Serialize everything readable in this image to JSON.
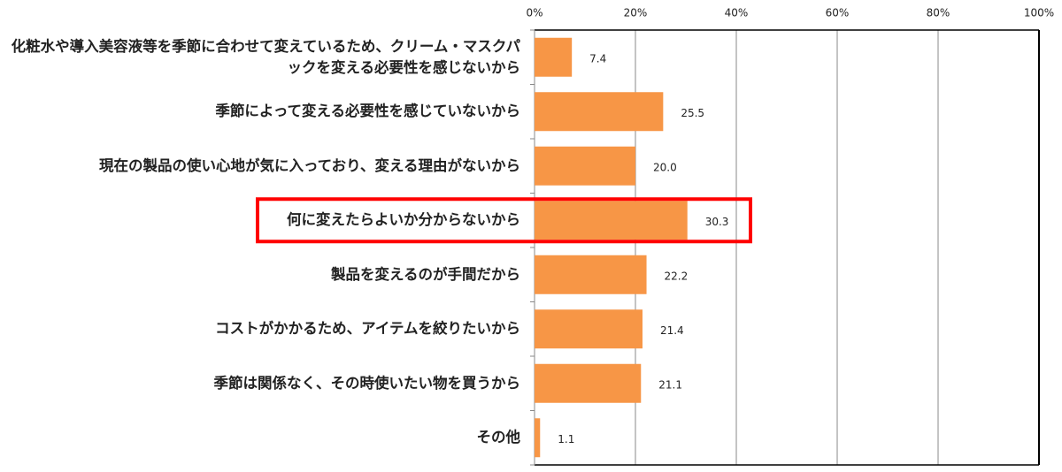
{
  "chart_data": {
    "type": "hbar",
    "categories": [
      "化粧水や導入美容液等を季節に合わせて変えているため、クリーム・マスクパックを変える必要性を感じないから",
      "季節によって変える必要性を感じていないから",
      "現在の製品の使い心地が気に入っており、変える理由がないから",
      "何に変えたらよいか分からないから",
      "製品を変えるのが手間だから",
      "コストがかかるため、アイテムを絞りたいから",
      "季節は関係なく、その時使いたい物を買うから",
      "その他"
    ],
    "values": [
      7.4,
      25.5,
      20.0,
      30.3,
      22.2,
      21.4,
      21.1,
      1.1
    ],
    "value_labels": [
      "7.4",
      "25.5",
      "20.0",
      "30.3",
      "22.2",
      "21.4",
      "21.1",
      "1.1"
    ],
    "color": "#f79646",
    "xlim": [
      0,
      100
    ],
    "xticks": [
      {
        "value": 0,
        "label": "0%"
      },
      {
        "value": 20,
        "label": "20%"
      },
      {
        "value": 40,
        "label": "40%"
      },
      {
        "value": 60,
        "label": "60%"
      },
      {
        "value": 80,
        "label": "80%"
      },
      {
        "value": 100,
        "label": "100%"
      }
    ],
    "grid": true,
    "highlight": 3,
    "highlight_color": "#ff0000"
  }
}
